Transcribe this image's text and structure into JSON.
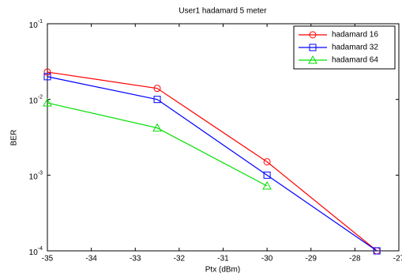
{
  "chart_data": {
    "type": "line",
    "title": "User1 hadamard 5 meter",
    "xlabel": "Ptx (dBm)",
    "ylabel": "BER",
    "x": [
      -35,
      -32.5,
      -30,
      -27.5
    ],
    "series": [
      {
        "name": "hadamard 16",
        "color": "#ff0000",
        "marker": "circle",
        "values": [
          0.023,
          0.014,
          0.0015,
          0.0001
        ]
      },
      {
        "name": "hadamard 32",
        "color": "#0000ff",
        "marker": "square",
        "values": [
          0.02,
          0.01,
          0.001,
          0.0001
        ]
      },
      {
        "name": "hadamard 64",
        "color": "#00e000",
        "marker": "triangle",
        "values": [
          0.009,
          0.0042,
          0.00072,
          null
        ]
      }
    ],
    "xlim": [
      -35,
      -27
    ],
    "xticks": [
      -35,
      -34,
      -33,
      -32,
      -31,
      -30,
      -29,
      -28,
      -27
    ],
    "ylim": [
      0.0001,
      0.1
    ],
    "ylog": true,
    "yticks": [
      {
        "value": 0.0001,
        "label": "10^-4"
      },
      {
        "value": 0.001,
        "label": "10^-3"
      },
      {
        "value": 0.01,
        "label": "10^-2"
      },
      {
        "value": 0.1,
        "label": "10^-1"
      }
    ],
    "grid": false,
    "legend": "upper right"
  }
}
